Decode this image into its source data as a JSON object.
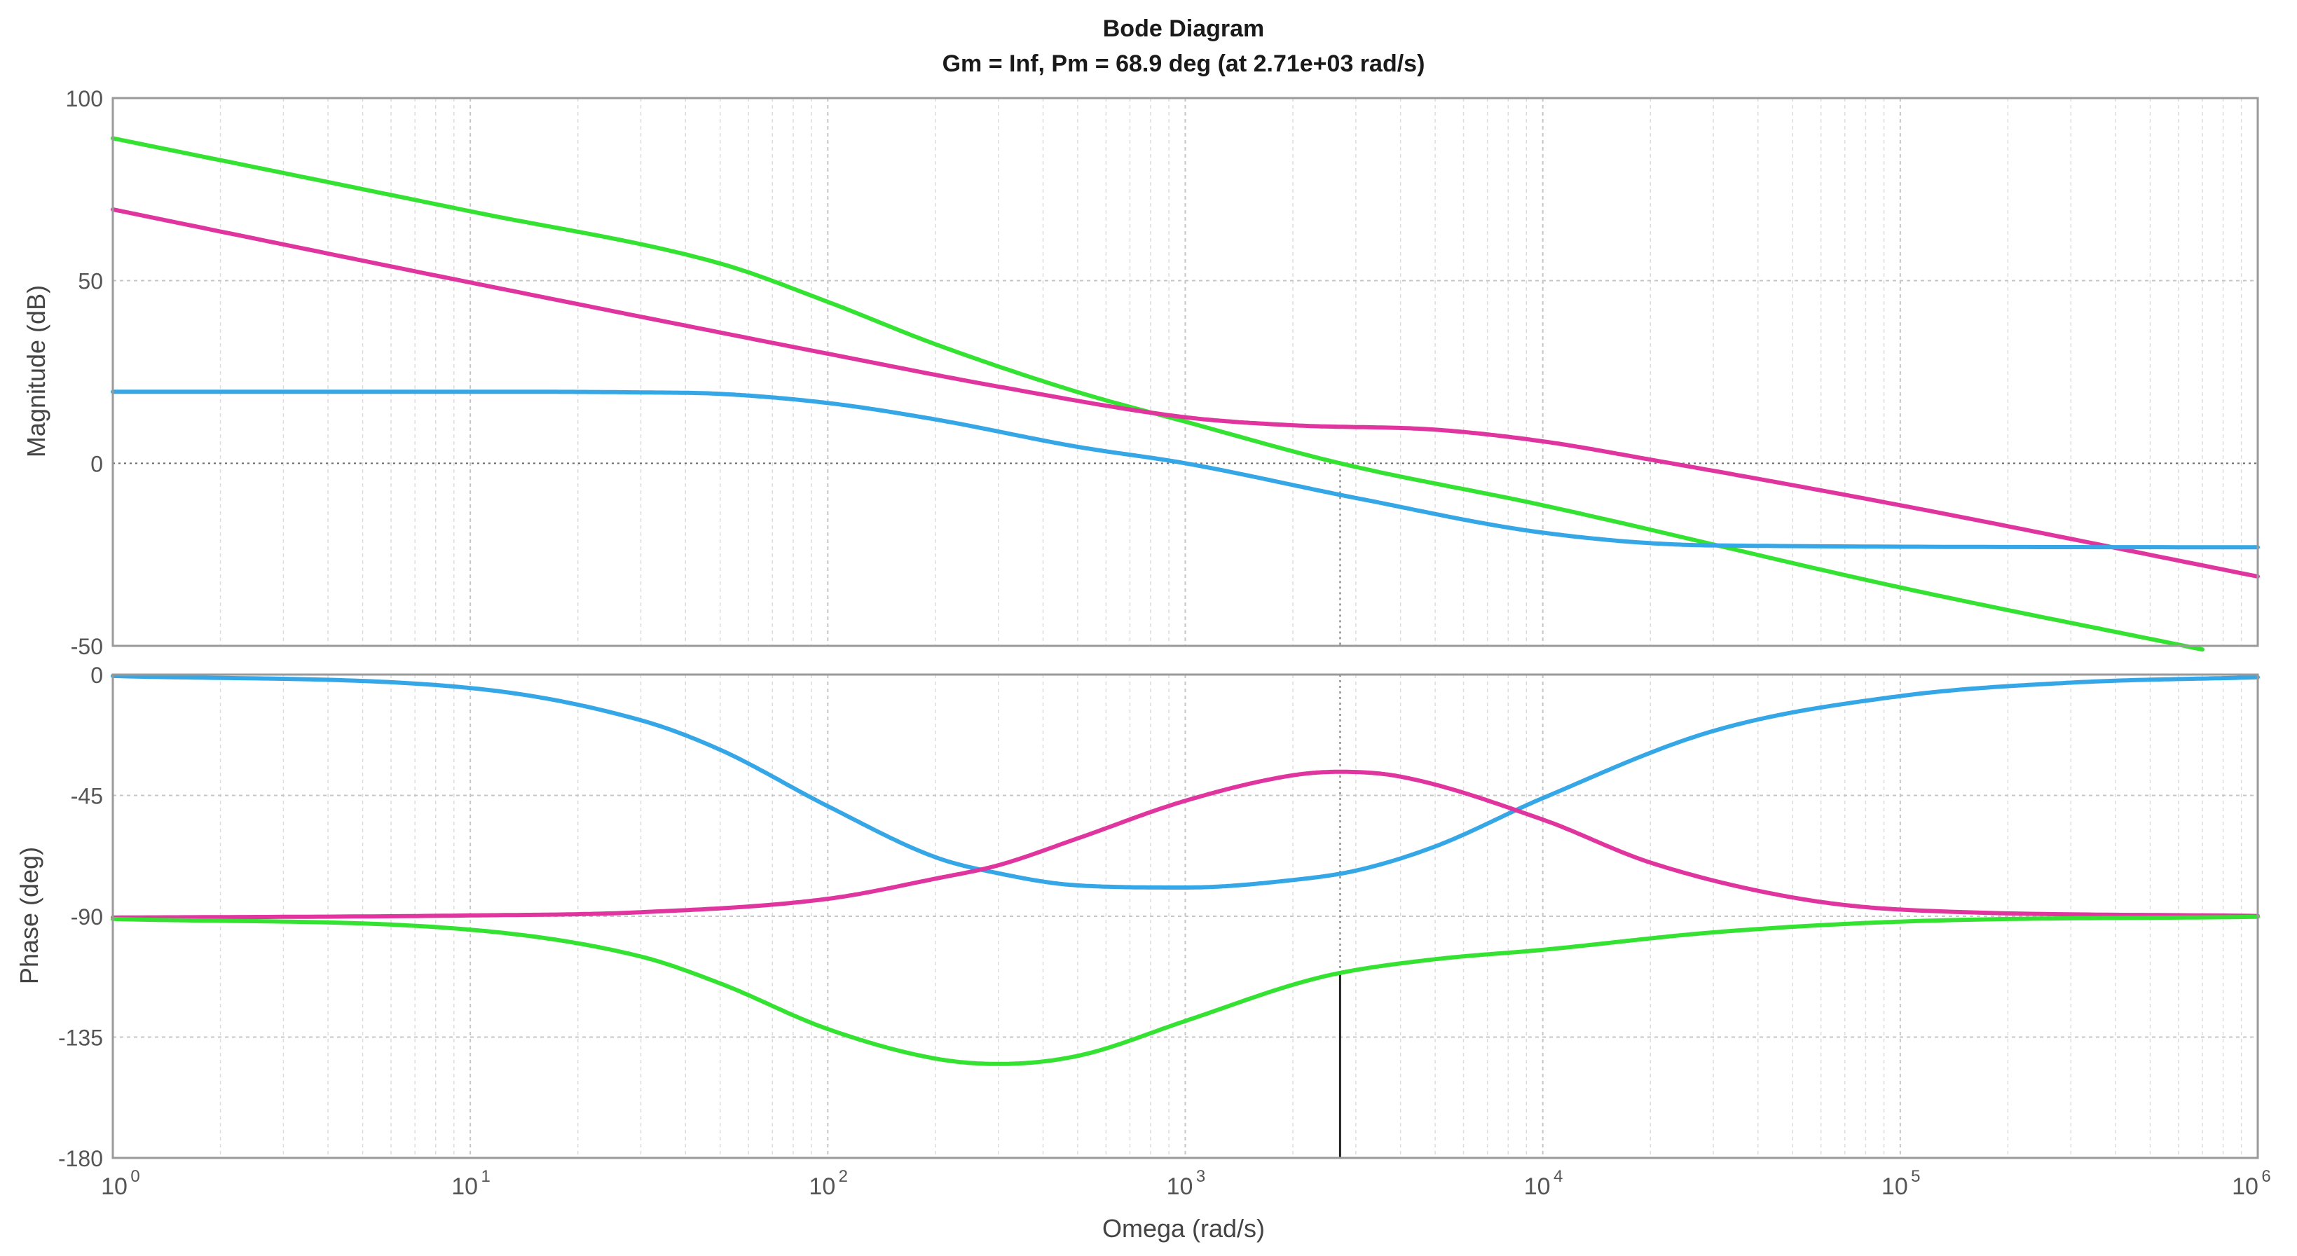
{
  "chart_data": {
    "type": "line",
    "title": "Bode Diagram",
    "subtitle": "Gm = Inf,  Pm = 68.9 deg (at 2.71e+03 rad/s)",
    "xlabel": "Omega  (rad/s)",
    "xscale": "log",
    "xlim": [
      1,
      1000000
    ],
    "x_ticks": [
      {
        "label": "10",
        "exp": "0",
        "value": 1
      },
      {
        "label": "10",
        "exp": "1",
        "value": 10
      },
      {
        "label": "10",
        "exp": "2",
        "value": 100
      },
      {
        "label": "10",
        "exp": "3",
        "value": 1000
      },
      {
        "label": "10",
        "exp": "4",
        "value": 10000
      },
      {
        "label": "10",
        "exp": "5",
        "value": 100000
      },
      {
        "label": "10",
        "exp": "6",
        "value": 1000000
      }
    ],
    "grid": true,
    "crossover_frequency": 2710,
    "colors": {
      "blue": "#35a6e6",
      "magenta": "#e0359f",
      "green": "#34e231"
    },
    "panels": [
      {
        "ylabel": "Magnitude (dB)",
        "ylim": [
          -50,
          100
        ],
        "y_ticks": [
          "100",
          "50",
          "0",
          "-50"
        ],
        "y_tick_values": [
          100,
          50,
          0,
          -50
        ],
        "series": [
          {
            "color": "#34e231",
            "x": [
              1,
              10,
              50,
              100,
              200,
              500,
              1000,
              2710,
              10000,
              100000,
              700000
            ],
            "values": [
              89,
              69,
              54.7,
              44.2,
              32.6,
              19.5,
              11.4,
              0,
              -11.5,
              -34,
              -51
            ]
          },
          {
            "color": "#e0359f",
            "x": [
              1,
              10,
              100,
              300,
              1000,
              2000,
              5000,
              10000,
              20000,
              100000,
              1000000
            ],
            "values": [
              69.5,
              49.5,
              30,
              21,
              12.6,
              10.4,
              9.2,
              6,
              1,
              -11.5,
              -31
            ]
          },
          {
            "color": "#35a6e6",
            "x": [
              1,
              10,
              30,
              50,
              100,
              200,
              500,
              1000,
              3000,
              10000,
              30000,
              1000000
            ],
            "values": [
              19.6,
              19.6,
              19.4,
              19,
              16.5,
              12,
              4.5,
              0,
              -9.5,
              -19,
              -22.5,
              -23
            ]
          }
        ]
      },
      {
        "ylabel": "Phase (deg)",
        "ylim": [
          -180,
          0
        ],
        "y_ticks": [
          "0",
          "-45",
          "-90",
          "-135",
          "-180"
        ],
        "y_tick_values": [
          0,
          -45,
          -90,
          -135,
          -180
        ],
        "series": [
          {
            "color": "#35a6e6",
            "x": [
              1,
              10,
              30,
              50,
              100,
              200,
              300,
              500,
              1000,
              2000,
              3000,
              5000,
              10000,
              30000,
              100000,
              300000,
              1000000
            ],
            "values": [
              -0.5,
              -5,
              -17,
              -28,
              -49,
              -68,
              -74,
              -78.5,
              -79.3,
              -76.5,
              -73,
              -64,
              -46,
              -21,
              -8,
              -3,
              -1
            ]
          },
          {
            "color": "#e0359f",
            "x": [
              1,
              10,
              30,
              100,
              200,
              300,
              500,
              1000,
              2000,
              2710,
              4000,
              10000,
              20000,
              50000,
              100000,
              1000000
            ],
            "values": [
              -90.5,
              -89.7,
              -88.5,
              -83.5,
              -76,
              -71,
              -61,
              -47,
              -37.5,
              -36.2,
              -38,
              -54,
              -70,
              -83,
              -87.5,
              -89.9
            ]
          },
          {
            "color": "#34e231",
            "x": [
              1,
              10,
              30,
              50,
              100,
              200,
              300,
              500,
              1000,
              2000,
              2710,
              5000,
              10000,
              30000,
              100000,
              1000000
            ],
            "values": [
              -91,
              -95,
              -105,
              -115,
              -132,
              -143,
              -145,
              -142,
              -129,
              -115.5,
              -111.1,
              -106,
              -102.5,
              -96,
              -92,
              -90.2
            ]
          }
        ]
      }
    ]
  }
}
